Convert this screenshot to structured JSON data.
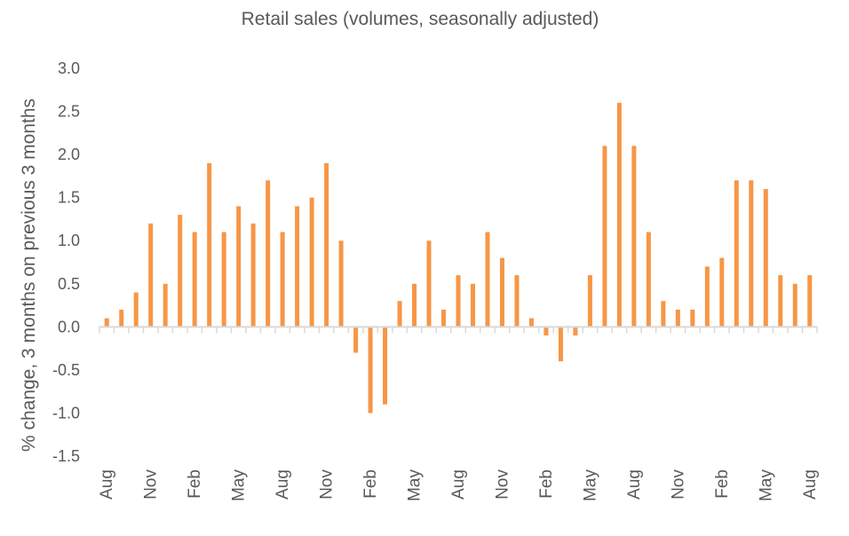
{
  "chart_data": {
    "type": "bar",
    "title": "Retail sales (volumes, seasonally adjusted)",
    "xlabel": "",
    "ylabel": "% change, 3 months on previous 3 months",
    "ylim": [
      -1.5,
      3.0
    ],
    "yticks": [
      "3.0",
      "2.5",
      "2.0",
      "1.5",
      "1.0",
      "0.5",
      "0.0",
      "-0.5",
      "-1.0",
      "-1.5"
    ],
    "ytick_values": [
      3.0,
      2.5,
      2.0,
      1.5,
      1.0,
      0.5,
      0.0,
      -0.5,
      -1.0,
      -1.5
    ],
    "categories": [
      "Aug",
      "",
      "",
      "Nov",
      "",
      "",
      "Feb",
      "",
      "",
      "May",
      "",
      "",
      "Aug",
      "",
      "",
      "Nov",
      "",
      "",
      "Feb",
      "",
      "",
      "May",
      "",
      "",
      "Aug",
      "",
      "",
      "Nov",
      "",
      "",
      "Feb",
      "",
      "",
      "May",
      "",
      "",
      "Aug",
      "",
      "",
      "Nov",
      "",
      "",
      "Feb",
      "",
      "",
      "May",
      "",
      "",
      "Aug"
    ],
    "values": [
      0.1,
      0.2,
      0.4,
      1.2,
      0.5,
      1.3,
      1.1,
      1.9,
      1.1,
      1.4,
      1.2,
      1.7,
      1.1,
      1.4,
      1.5,
      1.9,
      1.0,
      -0.3,
      -1.0,
      -0.9,
      0.3,
      0.5,
      1.0,
      0.2,
      0.6,
      0.5,
      1.1,
      0.8,
      0.6,
      0.1,
      -0.1,
      -0.4,
      -0.1,
      0.6,
      2.1,
      2.6,
      2.1,
      1.1,
      0.3,
      0.2,
      0.2,
      0.7,
      0.8,
      1.7,
      1.7,
      1.6,
      0.6,
      0.5,
      0.6
    ],
    "bar_color": "#F79646",
    "axis_color": "#D9D9D9",
    "grid": false,
    "legend": "none"
  }
}
